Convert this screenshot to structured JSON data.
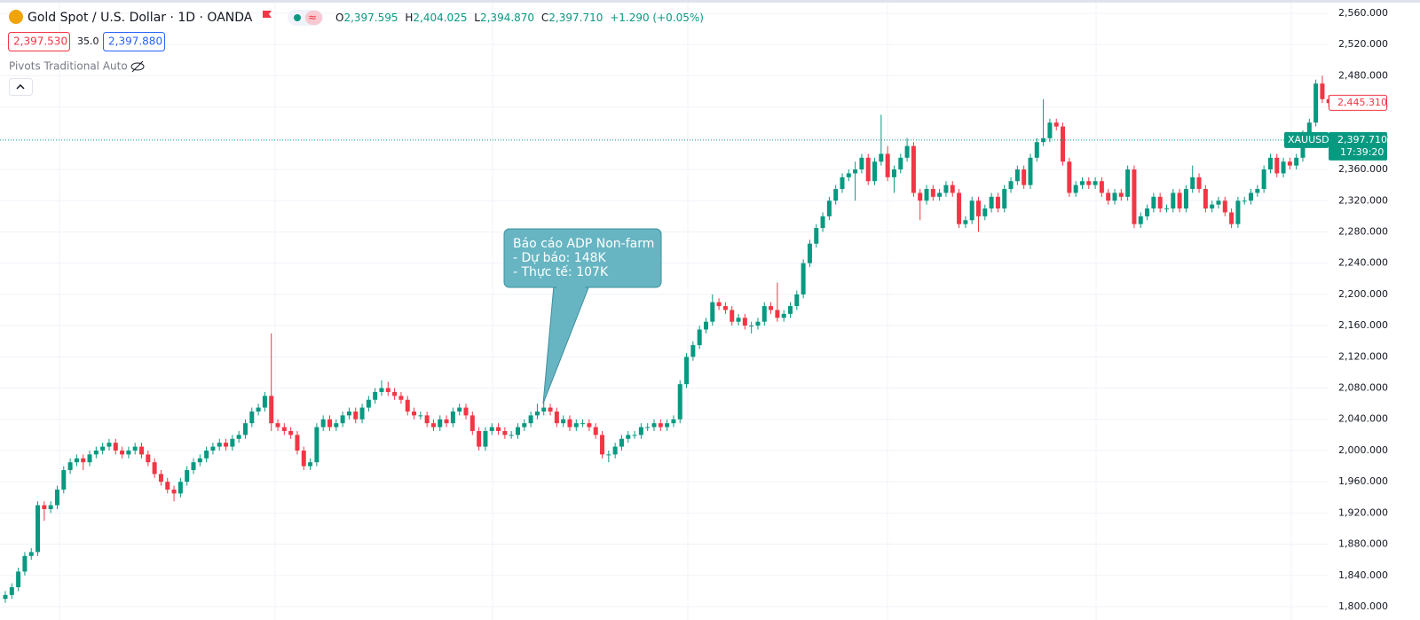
{
  "header": {
    "title": "Gold Spot / U.S. Dollar · 1D · OANDA",
    "o_key": "O",
    "open": "2,397.595",
    "h_key": "H",
    "high": "2,404.025",
    "l_key": "L",
    "low": "2,394.870",
    "c_key": "C",
    "close": "2,397.710",
    "change": "+1.290 (+0.05%)",
    "bid": "2,397.530",
    "spread": "35.0",
    "ask": "2,397.880",
    "indicator": "Pivots Traditional Auto"
  },
  "chart_data": {
    "type": "candlestick",
    "up_color": "#089981",
    "down_color": "#f23645",
    "grid": true,
    "ylim": [
      1783,
      2577
    ],
    "yticks": [
      {
        "value": 1800,
        "label": "1,800.000"
      },
      {
        "value": 1840,
        "label": "1,840.000"
      },
      {
        "value": 1880,
        "label": "1,880.000"
      },
      {
        "value": 1920,
        "label": "1,920.000"
      },
      {
        "value": 1960,
        "label": "1,960.000"
      },
      {
        "value": 2000,
        "label": "2,000.000"
      },
      {
        "value": 2040,
        "label": "2,040.000"
      },
      {
        "value": 2080,
        "label": "2,080.000"
      },
      {
        "value": 2120,
        "label": "2,120.000"
      },
      {
        "value": 2160,
        "label": "2,160.000"
      },
      {
        "value": 2200,
        "label": "2,200.000"
      },
      {
        "value": 2240,
        "label": "2,240.000"
      },
      {
        "value": 2280,
        "label": "2,280.000"
      },
      {
        "value": 2320,
        "label": "2,320.000"
      },
      {
        "value": 2360,
        "label": "2,360.000"
      },
      {
        "value": 2400,
        "label": "2,400.000"
      },
      {
        "value": 2440,
        "label": "2,440.000"
      },
      {
        "value": 2480,
        "label": "2,480.000"
      },
      {
        "value": 2520,
        "label": "2,520.000"
      },
      {
        "value": 2560,
        "label": "2,560.000"
      }
    ],
    "last_price": {
      "symbol": "XAUUSD",
      "value": 2397.71,
      "label": "2,397.710",
      "countdown": "17:39:20"
    },
    "marker_price": {
      "value": 2445.31,
      "label": "2,445.310"
    },
    "annotation": {
      "title": "Báo cáo ADP Non-farm",
      "lines": [
        "- Dự báo: 148K",
        "- Thực tế: 107K"
      ]
    },
    "ohlc": [
      [
        1810,
        1820,
        1805,
        1815
      ],
      [
        1815,
        1830,
        1810,
        1825
      ],
      [
        1825,
        1850,
        1820,
        1845
      ],
      [
        1845,
        1870,
        1840,
        1865
      ],
      [
        1865,
        1875,
        1860,
        1870
      ],
      [
        1870,
        1935,
        1865,
        1930
      ],
      [
        1930,
        1935,
        1910,
        1925
      ],
      [
        1925,
        1935,
        1920,
        1930
      ],
      [
        1930,
        1955,
        1925,
        1950
      ],
      [
        1950,
        1980,
        1945,
        1975
      ],
      [
        1975,
        1990,
        1970,
        1985
      ],
      [
        1985,
        1995,
        1980,
        1990
      ],
      [
        1990,
        1995,
        1975,
        1985
      ],
      [
        1985,
        2000,
        1980,
        1995
      ],
      [
        1995,
        2005,
        1990,
        2000
      ],
      [
        2000,
        2010,
        1995,
        2005
      ],
      [
        2005,
        2015,
        2000,
        2010
      ],
      [
        2010,
        2015,
        1995,
        2000
      ],
      [
        2000,
        2005,
        1990,
        1995
      ],
      [
        1995,
        2005,
        1990,
        2000
      ],
      [
        2000,
        2010,
        1995,
        2005
      ],
      [
        2005,
        2010,
        1990,
        1995
      ],
      [
        1995,
        2000,
        1980,
        1985
      ],
      [
        1985,
        1990,
        1965,
        1970
      ],
      [
        1970,
        1975,
        1955,
        1960
      ],
      [
        1960,
        1965,
        1945,
        1950
      ],
      [
        1950,
        1955,
        1935,
        1945
      ],
      [
        1945,
        1965,
        1940,
        1960
      ],
      [
        1960,
        1980,
        1955,
        1975
      ],
      [
        1975,
        1990,
        1970,
        1985
      ],
      [
        1985,
        1995,
        1980,
        1990
      ],
      [
        1990,
        2005,
        1985,
        2000
      ],
      [
        2000,
        2010,
        1995,
        2005
      ],
      [
        2005,
        2015,
        2000,
        2010
      ],
      [
        2010,
        2015,
        2000,
        2005
      ],
      [
        2005,
        2020,
        2000,
        2015
      ],
      [
        2015,
        2025,
        2010,
        2020
      ],
      [
        2020,
        2040,
        2015,
        2035
      ],
      [
        2035,
        2055,
        2030,
        2050
      ],
      [
        2050,
        2060,
        2045,
        2055
      ],
      [
        2055,
        2075,
        2050,
        2070
      ],
      [
        2070,
        2150,
        2025,
        2035
      ],
      [
        2035,
        2040,
        2025,
        2030
      ],
      [
        2030,
        2035,
        2020,
        2025
      ],
      [
        2025,
        2030,
        2015,
        2020
      ],
      [
        2020,
        2025,
        1995,
        2000
      ],
      [
        2000,
        2005,
        1975,
        1980
      ],
      [
        1980,
        1990,
        1975,
        1985
      ],
      [
        1985,
        2035,
        1980,
        2030
      ],
      [
        2030,
        2045,
        2025,
        2040
      ],
      [
        2040,
        2045,
        2025,
        2030
      ],
      [
        2030,
        2040,
        2025,
        2035
      ],
      [
        2035,
        2050,
        2030,
        2045
      ],
      [
        2045,
        2055,
        2040,
        2050
      ],
      [
        2050,
        2055,
        2035,
        2040
      ],
      [
        2040,
        2060,
        2035,
        2055
      ],
      [
        2055,
        2070,
        2050,
        2065
      ],
      [
        2065,
        2080,
        2060,
        2075
      ],
      [
        2075,
        2090,
        2070,
        2080
      ],
      [
        2080,
        2088,
        2070,
        2075
      ],
      [
        2075,
        2080,
        2065,
        2070
      ],
      [
        2070,
        2075,
        2060,
        2065
      ],
      [
        2065,
        2070,
        2045,
        2050
      ],
      [
        2050,
        2055,
        2040,
        2045
      ],
      [
        2045,
        2050,
        2040,
        2045
      ],
      [
        2045,
        2050,
        2030,
        2035
      ],
      [
        2035,
        2040,
        2025,
        2030
      ],
      [
        2030,
        2045,
        2025,
        2040
      ],
      [
        2040,
        2045,
        2030,
        2035
      ],
      [
        2035,
        2055,
        2030,
        2050
      ],
      [
        2050,
        2060,
        2045,
        2055
      ],
      [
        2055,
        2060,
        2040,
        2045
      ],
      [
        2045,
        2050,
        2020,
        2025
      ],
      [
        2025,
        2030,
        2000,
        2005
      ],
      [
        2005,
        2030,
        2000,
        2025
      ],
      [
        2025,
        2035,
        2020,
        2030
      ],
      [
        2030,
        2035,
        2020,
        2025
      ],
      [
        2025,
        2030,
        2015,
        2020
      ],
      [
        2020,
        2025,
        2015,
        2020
      ],
      [
        2020,
        2035,
        2015,
        2030
      ],
      [
        2030,
        2040,
        2025,
        2035
      ],
      [
        2035,
        2050,
        2030,
        2045
      ],
      [
        2045,
        2060,
        2040,
        2050
      ],
      [
        2050,
        2065,
        2045,
        2055
      ],
      [
        2055,
        2060,
        2045,
        2050
      ],
      [
        2050,
        2055,
        2030,
        2035
      ],
      [
        2035,
        2045,
        2030,
        2040
      ],
      [
        2040,
        2045,
        2025,
        2030
      ],
      [
        2030,
        2040,
        2025,
        2035
      ],
      [
        2035,
        2040,
        2030,
        2035
      ],
      [
        2035,
        2040,
        2025,
        2030
      ],
      [
        2030,
        2035,
        2015,
        2020
      ],
      [
        2020,
        2025,
        1990,
        1995
      ],
      [
        1995,
        2000,
        1985,
        1995
      ],
      [
        1995,
        2010,
        1990,
        2005
      ],
      [
        2005,
        2020,
        2000,
        2015
      ],
      [
        2015,
        2025,
        2010,
        2020
      ],
      [
        2020,
        2025,
        2015,
        2020
      ],
      [
        2020,
        2035,
        2015,
        2030
      ],
      [
        2030,
        2035,
        2025,
        2030
      ],
      [
        2030,
        2040,
        2025,
        2035
      ],
      [
        2035,
        2040,
        2025,
        2030
      ],
      [
        2030,
        2040,
        2025,
        2035
      ],
      [
        2035,
        2045,
        2030,
        2040
      ],
      [
        2040,
        2090,
        2035,
        2085
      ],
      [
        2085,
        2125,
        2080,
        2120
      ],
      [
        2120,
        2140,
        2115,
        2135
      ],
      [
        2135,
        2160,
        2130,
        2155
      ],
      [
        2155,
        2170,
        2150,
        2165
      ],
      [
        2165,
        2200,
        2160,
        2190
      ],
      [
        2190,
        2195,
        2180,
        2185
      ],
      [
        2185,
        2190,
        2175,
        2180
      ],
      [
        2180,
        2185,
        2160,
        2165
      ],
      [
        2165,
        2175,
        2160,
        2170
      ],
      [
        2170,
        2175,
        2155,
        2160
      ],
      [
        2160,
        2165,
        2150,
        2160
      ],
      [
        2160,
        2170,
        2155,
        2165
      ],
      [
        2165,
        2190,
        2160,
        2185
      ],
      [
        2185,
        2190,
        2175,
        2180
      ],
      [
        2180,
        2215,
        2165,
        2170
      ],
      [
        2170,
        2180,
        2165,
        2175
      ],
      [
        2175,
        2190,
        2170,
        2185
      ],
      [
        2185,
        2205,
        2180,
        2200
      ],
      [
        2200,
        2245,
        2195,
        2240
      ],
      [
        2240,
        2270,
        2235,
        2265
      ],
      [
        2265,
        2290,
        2260,
        2285
      ],
      [
        2285,
        2305,
        2280,
        2300
      ],
      [
        2300,
        2325,
        2295,
        2320
      ],
      [
        2320,
        2340,
        2315,
        2335
      ],
      [
        2335,
        2355,
        2330,
        2350
      ],
      [
        2350,
        2360,
        2345,
        2355
      ],
      [
        2355,
        2370,
        2320,
        2360
      ],
      [
        2360,
        2380,
        2355,
        2375
      ],
      [
        2375,
        2380,
        2340,
        2345
      ],
      [
        2345,
        2375,
        2340,
        2370
      ],
      [
        2370,
        2430,
        2365,
        2380
      ],
      [
        2380,
        2390,
        2345,
        2350
      ],
      [
        2350,
        2365,
        2330,
        2360
      ],
      [
        2360,
        2380,
        2355,
        2375
      ],
      [
        2375,
        2400,
        2370,
        2390
      ],
      [
        2390,
        2395,
        2325,
        2330
      ],
      [
        2330,
        2335,
        2295,
        2320
      ],
      [
        2320,
        2340,
        2315,
        2335
      ],
      [
        2335,
        2340,
        2320,
        2325
      ],
      [
        2325,
        2335,
        2320,
        2330
      ],
      [
        2330,
        2345,
        2325,
        2340
      ],
      [
        2340,
        2345,
        2325,
        2330
      ],
      [
        2330,
        2335,
        2285,
        2290
      ],
      [
        2290,
        2300,
        2285,
        2295
      ],
      [
        2295,
        2325,
        2290,
        2320
      ],
      [
        2320,
        2325,
        2280,
        2300
      ],
      [
        2300,
        2315,
        2295,
        2310
      ],
      [
        2310,
        2330,
        2305,
        2325
      ],
      [
        2325,
        2330,
        2305,
        2310
      ],
      [
        2310,
        2340,
        2305,
        2335
      ],
      [
        2335,
        2350,
        2330,
        2345
      ],
      [
        2345,
        2365,
        2340,
        2360
      ],
      [
        2360,
        2365,
        2335,
        2340
      ],
      [
        2340,
        2380,
        2335,
        2375
      ],
      [
        2375,
        2400,
        2370,
        2395
      ],
      [
        2395,
        2450,
        2390,
        2400
      ],
      [
        2400,
        2425,
        2395,
        2420
      ],
      [
        2420,
        2425,
        2410,
        2415
      ],
      [
        2415,
        2420,
        2365,
        2370
      ],
      [
        2370,
        2375,
        2325,
        2330
      ],
      [
        2330,
        2345,
        2325,
        2340
      ],
      [
        2340,
        2350,
        2335,
        2345
      ],
      [
        2345,
        2350,
        2335,
        2340
      ],
      [
        2340,
        2350,
        2335,
        2345
      ],
      [
        2345,
        2350,
        2325,
        2330
      ],
      [
        2330,
        2335,
        2315,
        2320
      ],
      [
        2320,
        2335,
        2315,
        2330
      ],
      [
        2330,
        2335,
        2320,
        2325
      ],
      [
        2325,
        2365,
        2320,
        2360
      ],
      [
        2360,
        2365,
        2285,
        2290
      ],
      [
        2290,
        2305,
        2285,
        2300
      ],
      [
        2300,
        2315,
        2295,
        2310
      ],
      [
        2310,
        2330,
        2305,
        2325
      ],
      [
        2325,
        2330,
        2305,
        2310
      ],
      [
        2310,
        2315,
        2305,
        2310
      ],
      [
        2310,
        2335,
        2305,
        2330
      ],
      [
        2330,
        2335,
        2305,
        2310
      ],
      [
        2310,
        2340,
        2305,
        2335
      ],
      [
        2335,
        2365,
        2330,
        2350
      ],
      [
        2350,
        2355,
        2330,
        2335
      ],
      [
        2335,
        2340,
        2305,
        2310
      ],
      [
        2310,
        2320,
        2305,
        2315
      ],
      [
        2315,
        2325,
        2310,
        2320
      ],
      [
        2320,
        2325,
        2300,
        2305
      ],
      [
        2305,
        2310,
        2285,
        2290
      ],
      [
        2290,
        2325,
        2285,
        2320
      ],
      [
        2320,
        2325,
        2315,
        2320
      ],
      [
        2320,
        2335,
        2315,
        2330
      ],
      [
        2330,
        2340,
        2325,
        2335
      ],
      [
        2335,
        2365,
        2330,
        2360
      ],
      [
        2360,
        2380,
        2355,
        2375
      ],
      [
        2375,
        2380,
        2350,
        2355
      ],
      [
        2355,
        2375,
        2350,
        2370
      ],
      [
        2370,
        2375,
        2360,
        2365
      ],
      [
        2365,
        2380,
        2360,
        2375
      ],
      [
        2375,
        2410,
        2370,
        2405
      ],
      [
        2405,
        2425,
        2400,
        2420
      ],
      [
        2420,
        2475,
        2415,
        2470
      ],
      [
        2470,
        2480,
        2445,
        2450
      ],
      [
        2450,
        2455,
        2440,
        2445
      ]
    ]
  }
}
